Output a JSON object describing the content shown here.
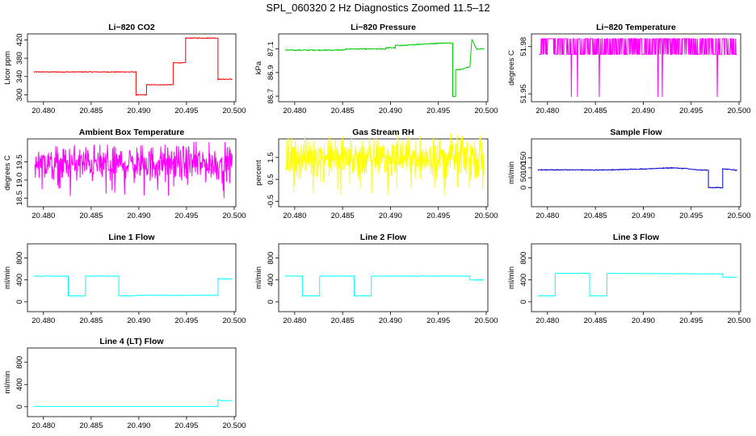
{
  "figure": {
    "title": "SPL_060320  2 Hz Diagnostics Zoomed 11.5–12"
  },
  "colors": {
    "red": "#ff0000",
    "green": "#00cc00",
    "magenta": "#ff00ff",
    "yellow": "#ffff00",
    "blue": "#0000cc",
    "cyan": "#00ffff"
  },
  "chart_data": [
    {
      "type": "line",
      "title": "Li−820 CO2",
      "xlabel": "",
      "ylabel": "Licor ppm",
      "xlim": [
        20.479,
        20.5
      ],
      "ylim": [
        292,
        426
      ],
      "xticks": [
        "20.480",
        "20.485",
        "20.490",
        "20.495",
        "20.500"
      ],
      "yticks": [
        "300",
        "340",
        "380",
        "420"
      ],
      "series": [
        {
          "color": "#ff0000",
          "noise": 0.8,
          "x": [
            20.479,
            20.4897,
            20.4897,
            20.4908,
            20.4908,
            20.4922,
            20.4922,
            20.4936,
            20.4936,
            20.4949,
            20.4949,
            20.4983,
            20.4983,
            20.4998
          ],
          "y": [
            350,
            350,
            300,
            300,
            322,
            322,
            322,
            322,
            370,
            370,
            424,
            424,
            334,
            334
          ]
        }
      ]
    },
    {
      "type": "line",
      "title": "Li−820 Pressure",
      "xlabel": "",
      "ylabel": "kPa",
      "xlim": [
        20.479,
        20.5
      ],
      "ylim": [
        86.68,
        87.2
      ],
      "xticks": [
        "20.480",
        "20.485",
        "20.490",
        "20.495",
        "20.500"
      ],
      "yticks": [
        "86.7",
        "86.9",
        "87.1"
      ],
      "series": [
        {
          "color": "#00cc00",
          "noise": 0.004,
          "x": [
            20.479,
            20.485,
            20.4855,
            20.4895,
            20.4895,
            20.4905,
            20.4905,
            20.4915,
            20.493,
            20.4955,
            20.4965,
            20.4965,
            20.4968,
            20.4968,
            20.4975,
            20.4983,
            20.4985,
            20.499,
            20.4998
          ],
          "y": [
            87.09,
            87.09,
            87.1,
            87.1,
            87.11,
            87.11,
            87.13,
            87.13,
            87.14,
            87.15,
            87.15,
            86.7,
            86.7,
            86.92,
            86.93,
            86.95,
            87.18,
            87.1,
            87.1
          ]
        }
      ]
    },
    {
      "type": "line",
      "title": "Li−820 Temperature",
      "xlabel": "",
      "ylabel": "degrees C",
      "xlim": [
        20.479,
        20.5
      ],
      "ylim": [
        51.947,
        51.986
      ],
      "xticks": [
        "20.480",
        "20.485",
        "20.490",
        "20.495",
        "20.500"
      ],
      "yticks": [
        "51.95",
        "51.98"
      ],
      "series": [
        {
          "color": "#ff00ff",
          "pattern": "toggle",
          "low": 51.975,
          "high": 51.985,
          "dips": 51.948
        }
      ]
    },
    {
      "type": "line",
      "title": "Ambient Box Temperature",
      "xlabel": "",
      "ylabel": "degrees C",
      "xlim": [
        20.479,
        20.5
      ],
      "ylim": [
        18.35,
        20.05
      ],
      "xticks": [
        "20.480",
        "20.485",
        "20.490",
        "20.495",
        "20.500"
      ],
      "yticks": [
        "18.5",
        "19.0",
        "19.5"
      ],
      "series": [
        {
          "color": "#ff00ff",
          "pattern": "noise",
          "mean": 19.45,
          "amp": 0.55
        }
      ]
    },
    {
      "type": "line",
      "title": "Gas Stream RH",
      "xlabel": "",
      "ylabel": "percent",
      "xlim": [
        20.479,
        20.5
      ],
      "ylim": [
        -0.6,
        2.2
      ],
      "xticks": [
        "20.480",
        "20.485",
        "20.490",
        "20.495",
        "20.500"
      ],
      "yticks": [
        "-0.5",
        "0.5",
        "1.5"
      ],
      "series": [
        {
          "color": "#ffff00",
          "pattern": "noise",
          "mean": 1.5,
          "amp": 1.0
        }
      ]
    },
    {
      "type": "line",
      "title": "Sample Flow",
      "xlabel": "",
      "ylabel": "ml/min",
      "xlim": [
        20.479,
        20.5
      ],
      "ylim": [
        -80,
        230
      ],
      "xticks": [
        "20.480",
        "20.485",
        "20.490",
        "20.495",
        "20.500"
      ],
      "yticks": [
        "0",
        "50",
        "100",
        "150"
      ],
      "series": [
        {
          "color": "#0000cc",
          "noise": 2,
          "x": [
            20.479,
            20.486,
            20.4905,
            20.493,
            20.4945,
            20.4955,
            20.4968,
            20.4968,
            20.4983,
            20.4983,
            20.4998
          ],
          "y": [
            90,
            89,
            95,
            100,
            96,
            90,
            88,
            0,
            0,
            95,
            88
          ]
        }
      ]
    },
    {
      "type": "line",
      "title": "Line 1 Flow",
      "xlabel": "",
      "ylabel": "ml/min",
      "xlim": [
        20.479,
        20.5
      ],
      "ylim": [
        -120,
        1000
      ],
      "xticks": [
        "20.480",
        "20.485",
        "20.490",
        "20.495",
        "20.500"
      ],
      "yticks": [
        "0",
        "400",
        "800"
      ],
      "series": [
        {
          "color": "#00ffff",
          "noise": 4,
          "x": [
            20.479,
            20.4826,
            20.4826,
            20.4844,
            20.4844,
            20.4879,
            20.4879,
            20.4895,
            20.4898,
            20.4983,
            20.4983,
            20.4998
          ],
          "y": [
            470,
            470,
            110,
            110,
            470,
            470,
            110,
            110,
            120,
            120,
            420,
            420
          ]
        }
      ]
    },
    {
      "type": "line",
      "title": "Line 2 Flow",
      "xlabel": "",
      "ylabel": "ml/min",
      "xlim": [
        20.479,
        20.5
      ],
      "ylim": [
        -120,
        1000
      ],
      "xticks": [
        "20.480",
        "20.485",
        "20.490",
        "20.495",
        "20.500"
      ],
      "yticks": [
        "0",
        "400",
        "800"
      ],
      "series": [
        {
          "color": "#00ffff",
          "noise": 4,
          "x": [
            20.479,
            20.4808,
            20.4808,
            20.4826,
            20.4826,
            20.4862,
            20.4862,
            20.488,
            20.488,
            20.4983,
            20.4983,
            20.4998
          ],
          "y": [
            470,
            470,
            110,
            110,
            470,
            470,
            110,
            110,
            470,
            470,
            400,
            400
          ]
        }
      ]
    },
    {
      "type": "line",
      "title": "Line 3 Flow",
      "xlabel": "",
      "ylabel": "ml/min",
      "xlim": [
        20.479,
        20.5
      ],
      "ylim": [
        -120,
        1000
      ],
      "xticks": [
        "20.480",
        "20.485",
        "20.490",
        "20.495",
        "20.500"
      ],
      "yticks": [
        "0",
        "400",
        "800"
      ],
      "series": [
        {
          "color": "#00ffff",
          "noise": 4,
          "x": [
            20.479,
            20.4808,
            20.4808,
            20.4844,
            20.4844,
            20.4862,
            20.4862,
            20.4983,
            20.4983,
            20.4998
          ],
          "y": [
            110,
            110,
            520,
            520,
            110,
            110,
            520,
            510,
            450,
            450
          ]
        }
      ]
    },
    {
      "type": "line",
      "title": "Line 4 (LT) Flow",
      "xlabel": "",
      "ylabel": "ml/min",
      "xlim": [
        20.479,
        20.5
      ],
      "ylim": [
        -120,
        1000
      ],
      "xticks": [
        "20.480",
        "20.485",
        "20.490",
        "20.495",
        "20.500"
      ],
      "yticks": [
        "0",
        "400",
        "800"
      ],
      "series": [
        {
          "color": "#00ffff",
          "noise": 1,
          "x": [
            20.479,
            20.4983,
            20.4983,
            20.4986,
            20.4998
          ],
          "y": [
            5,
            5,
            130,
            110,
            110
          ]
        }
      ]
    }
  ]
}
